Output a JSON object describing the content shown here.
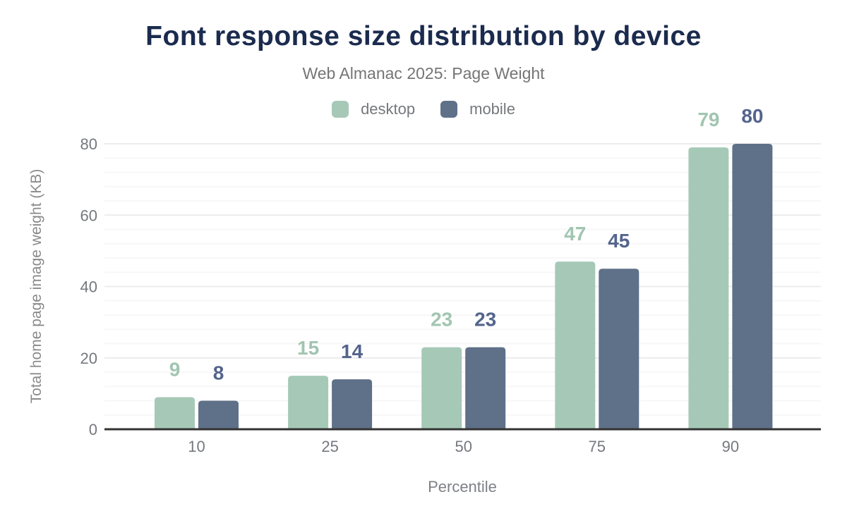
{
  "page": {
    "title": "Font response size distribution by device",
    "subtitle": "Web Almanac 2025: Page Weight"
  },
  "chart_data": {
    "type": "bar",
    "title": "Font response size distribution by device",
    "subtitle": "Web Almanac 2025: Page Weight",
    "categories": [
      "10",
      "25",
      "50",
      "75",
      "90"
    ],
    "series": [
      {
        "name": "desktop",
        "values": [
          9,
          15,
          23,
          47,
          79
        ],
        "color": "#a6c9b7",
        "label_color": "#a1c5b1"
      },
      {
        "name": "mobile",
        "values": [
          8,
          14,
          23,
          45,
          80
        ],
        "color": "#5f7089",
        "label_color": "#54648c"
      }
    ],
    "xlabel": "Percentile",
    "ylabel": "Total home page image weight (KB)",
    "ylim": [
      0,
      80
    ],
    "yticks": [
      0,
      20,
      40,
      60,
      80
    ],
    "minor_grid_interval": 4,
    "major_grid_interval": 20,
    "grid": true,
    "legend_position": "top",
    "data_labels": true
  },
  "colors": {
    "title": "#1b2b4e",
    "subtitle": "#757575",
    "legend_text": "#75787c",
    "tick_label": "#75787f",
    "axis_line": "#333333",
    "grid_minor": "#f7f7f7",
    "grid_major": "#ececec",
    "background": "#ffffff"
  }
}
